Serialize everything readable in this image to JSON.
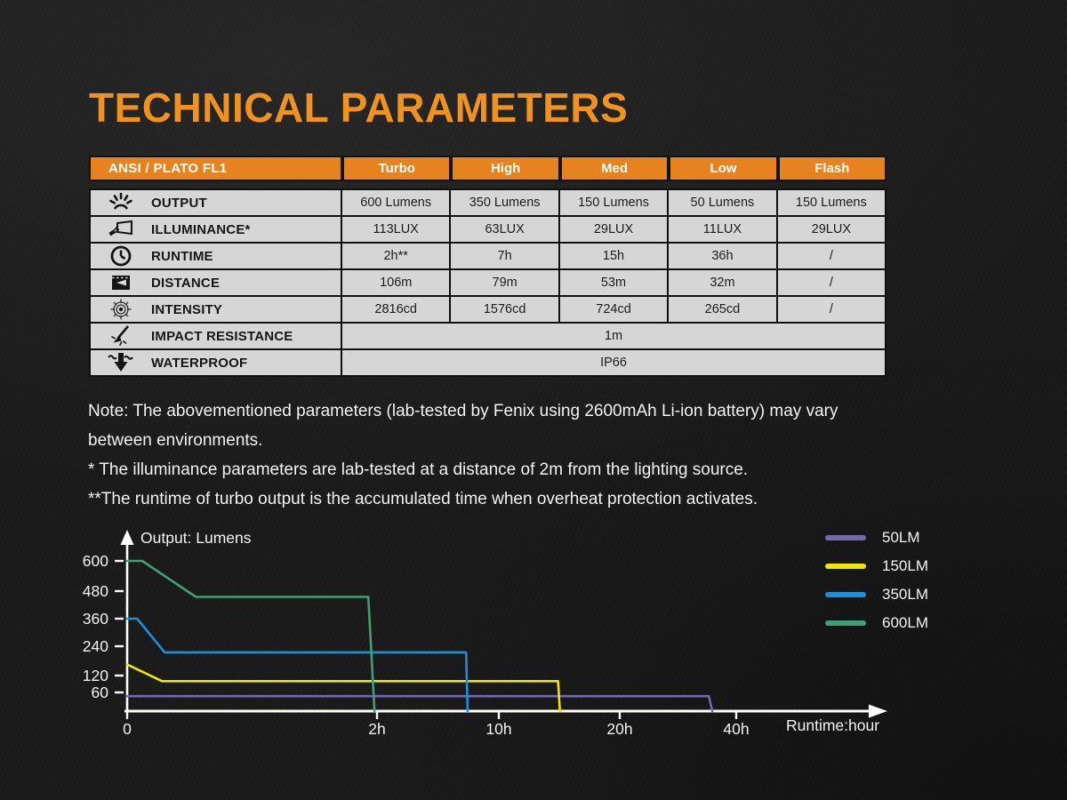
{
  "page": {
    "title": "TECHNICAL PARAMETERS"
  },
  "colors": {
    "accent_orange": "#F0921E",
    "table_header_orange": "#E6831F",
    "table_row_bg": "#D6D6D6",
    "series_50lm": "#7468B0",
    "series_150lm": "#F2E600",
    "series_350lm": "#1E8FD5",
    "series_600lm": "#3FA077"
  },
  "table": {
    "corner_label": "ANSI / PLATO FL1",
    "columns": [
      "Turbo",
      "High",
      "Med",
      "Low",
      "Flash"
    ],
    "rows": [
      {
        "icon": "light-output-icon",
        "label": "OUTPUT",
        "values": [
          "600 Lumens",
          "350 Lumens",
          "150 Lumens",
          "50 Lumens",
          "150 Lumens"
        ]
      },
      {
        "icon": "illuminance-icon",
        "label": "ILLUMINANCE*",
        "values": [
          "113LUX",
          "63LUX",
          "29LUX",
          "11LUX",
          "29LUX"
        ]
      },
      {
        "icon": "runtime-clock-icon",
        "label": "RUNTIME",
        "values": [
          "2h**",
          "7h",
          "15h",
          "36h",
          "/"
        ]
      },
      {
        "icon": "beam-distance-icon",
        "label": "DISTANCE",
        "values": [
          "106m",
          "79m",
          "53m",
          "32m",
          "/"
        ]
      },
      {
        "icon": "intensity-target-icon",
        "label": "INTENSITY",
        "values": [
          "2816cd",
          "1576cd",
          "724cd",
          "265cd",
          "/"
        ]
      },
      {
        "icon": "impact-resistance-icon",
        "label": "IMPACT RESISTANCE",
        "span_value": "1m"
      },
      {
        "icon": "waterproof-icon",
        "label": "WATERPROOF",
        "span_value": "IP66"
      }
    ]
  },
  "notes": {
    "lines": [
      "Note: The abovementioned parameters (lab-tested by Fenix using 2600mAh Li-ion battery) may vary",
      "between environments.",
      "* The illuminance parameters are lab-tested at a distance of 2m from the lighting source.",
      "**The runtime of turbo output is the accumulated time when overheat protection activates."
    ]
  },
  "chart_data": {
    "type": "line",
    "title": "Output: Lumens",
    "xlabel": "Runtime:hour",
    "x_ticks": [
      {
        "label": "0",
        "hours": 0
      },
      {
        "label": "2h",
        "hours": 2
      },
      {
        "label": "10h",
        "hours": 10
      },
      {
        "label": "20h",
        "hours": 20
      },
      {
        "label": "40h",
        "hours": 40
      }
    ],
    "y_ticks": [
      600,
      480,
      360,
      240,
      120,
      60
    ],
    "ylim": [
      0,
      650
    ],
    "x_axis_note": "non-linear axis, equal spacing between labeled ticks",
    "series": [
      {
        "name": "50LM",
        "color": "#7468B0",
        "points": [
          [
            0,
            48
          ],
          [
            35.3,
            48
          ],
          [
            35.9,
            0
          ]
        ]
      },
      {
        "name": "150LM",
        "color": "#F2E600",
        "points": [
          [
            0,
            165
          ],
          [
            0.28,
            100
          ],
          [
            14.9,
            100
          ],
          [
            15.05,
            0
          ]
        ]
      },
      {
        "name": "350LM",
        "color": "#1E8FD5",
        "points": [
          [
            0,
            360
          ],
          [
            0.08,
            360
          ],
          [
            0.3,
            215
          ],
          [
            7.85,
            215
          ],
          [
            7.95,
            0
          ]
        ]
      },
      {
        "name": "600LM",
        "color": "#3FA077",
        "points": [
          [
            0,
            600
          ],
          [
            0.12,
            600
          ],
          [
            0.55,
            455
          ],
          [
            1.93,
            455
          ],
          [
            1.98,
            0
          ]
        ]
      }
    ],
    "legend_position": "upper right"
  }
}
